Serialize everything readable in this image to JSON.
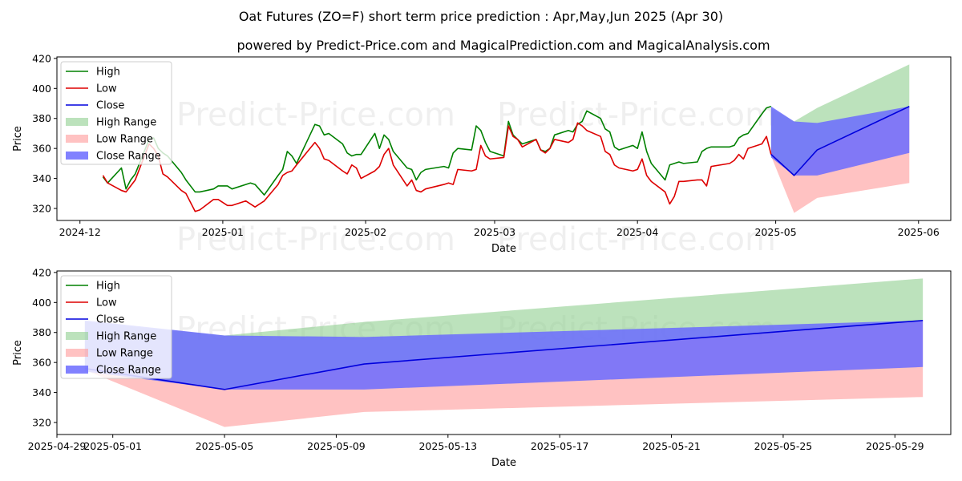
{
  "title": "Oat Futures (ZO=F) short term price prediction : Apr,May,Jun 2025 (Apr 30)",
  "subtitle": "powered by Predict-Price.com and MagicalPrediction.com and MagicalAnalysis.com",
  "watermark": "Predict-Price.com",
  "colors": {
    "high": "#008000",
    "low": "#dd0000",
    "close": "#0000dd",
    "high_range": "#8fcf8f",
    "low_range": "#ff9a9a",
    "close_range": "#6b6bff"
  },
  "chart_data": [
    {
      "type": "line",
      "xlabel": "Date",
      "ylabel": "Price",
      "x_type": "date",
      "xlim": [
        "2024-11-26",
        "2025-06-08"
      ],
      "ylim": [
        312,
        421
      ],
      "xticks": [
        "2024-12-01",
        "2025-01-01",
        "2025-02-01",
        "2025-03-01",
        "2025-04-01",
        "2025-05-01",
        "2025-06-01"
      ],
      "xtick_labels": [
        "2024-12",
        "2025-01",
        "2025-02",
        "2025-03",
        "2025-04",
        "2025-05",
        "2025-06"
      ],
      "yticks": [
        320,
        340,
        360,
        380,
        400,
        420
      ],
      "legend": [
        "High",
        "Low",
        "Close",
        "High Range",
        "Low Range",
        "Close Range"
      ],
      "legend_position": "upper-left",
      "grid": false,
      "series": [
        {
          "name": "High",
          "x": [
            "2024-12-06",
            "2024-12-07",
            "2024-12-10",
            "2024-12-11",
            "2024-12-12",
            "2024-12-13",
            "2024-12-16",
            "2024-12-17",
            "2024-12-18",
            "2024-12-19",
            "2024-12-20",
            "2024-12-23",
            "2024-12-24",
            "2024-12-26",
            "2024-12-27",
            "2024-12-30",
            "2024-12-31",
            "2025-01-02",
            "2025-01-03",
            "2025-01-06",
            "2025-01-07",
            "2025-01-08",
            "2025-01-10",
            "2025-01-13",
            "2025-01-14",
            "2025-01-15",
            "2025-01-16",
            "2025-01-17",
            "2025-01-21",
            "2025-01-22",
            "2025-01-23",
            "2025-01-24",
            "2025-01-27",
            "2025-01-28",
            "2025-01-29",
            "2025-01-30",
            "2025-01-31",
            "2025-02-03",
            "2025-02-04",
            "2025-02-05",
            "2025-02-06",
            "2025-02-07",
            "2025-02-10",
            "2025-02-11",
            "2025-02-12",
            "2025-02-13",
            "2025-02-14",
            "2025-02-18",
            "2025-02-19",
            "2025-02-20",
            "2025-02-21",
            "2025-02-24",
            "2025-02-25",
            "2025-02-26",
            "2025-02-27",
            "2025-02-28",
            "2025-03-03",
            "2025-03-04",
            "2025-03-05",
            "2025-03-06",
            "2025-03-07",
            "2025-03-10",
            "2025-03-11",
            "2025-03-12",
            "2025-03-13",
            "2025-03-14",
            "2025-03-17",
            "2025-03-18",
            "2025-03-19",
            "2025-03-20",
            "2025-03-21",
            "2025-03-24",
            "2025-03-25",
            "2025-03-26",
            "2025-03-27",
            "2025-03-28",
            "2025-03-31",
            "2025-04-01",
            "2025-04-02",
            "2025-04-03",
            "2025-04-04",
            "2025-04-07",
            "2025-04-08",
            "2025-04-09",
            "2025-04-10",
            "2025-04-11",
            "2025-04-14",
            "2025-04-15",
            "2025-04-16",
            "2025-04-17",
            "2025-04-21",
            "2025-04-22",
            "2025-04-23",
            "2025-04-24",
            "2025-04-25",
            "2025-04-28",
            "2025-04-29",
            "2025-04-30"
          ],
          "values": [
            341,
            337,
            347,
            333,
            339,
            343,
            366,
            367,
            360,
            357,
            355,
            344,
            339,
            331,
            331,
            333,
            335,
            335,
            333,
            336,
            337,
            336,
            329,
            342,
            346,
            358,
            355,
            350,
            376,
            375,
            369,
            370,
            363,
            357,
            355,
            356,
            356,
            370,
            360,
            369,
            366,
            358,
            347,
            346,
            339,
            344,
            346,
            348,
            347,
            357,
            360,
            359,
            375,
            372,
            364,
            358,
            355,
            378,
            369,
            366,
            363,
            366,
            359,
            358,
            360,
            369,
            372,
            371,
            376,
            378,
            385,
            380,
            373,
            371,
            361,
            359,
            362,
            360,
            371,
            358,
            350,
            339,
            349,
            350,
            351,
            350,
            351,
            358,
            360,
            361,
            361,
            362,
            367,
            369,
            370,
            383,
            387,
            388
          ]
        },
        {
          "name": "Low",
          "x": [
            "2024-12-06",
            "2024-12-07",
            "2024-12-10",
            "2024-12-11",
            "2024-12-12",
            "2024-12-13",
            "2024-12-16",
            "2024-12-17",
            "2024-12-18",
            "2024-12-19",
            "2024-12-20",
            "2024-12-23",
            "2024-12-24",
            "2024-12-26",
            "2024-12-27",
            "2024-12-30",
            "2024-12-31",
            "2025-01-02",
            "2025-01-03",
            "2025-01-06",
            "2025-01-07",
            "2025-01-08",
            "2025-01-10",
            "2025-01-13",
            "2025-01-14",
            "2025-01-15",
            "2025-01-16",
            "2025-01-17",
            "2025-01-21",
            "2025-01-22",
            "2025-01-23",
            "2025-01-24",
            "2025-01-27",
            "2025-01-28",
            "2025-01-29",
            "2025-01-30",
            "2025-01-31",
            "2025-02-03",
            "2025-02-04",
            "2025-02-05",
            "2025-02-06",
            "2025-02-07",
            "2025-02-10",
            "2025-02-11",
            "2025-02-12",
            "2025-02-13",
            "2025-02-14",
            "2025-02-18",
            "2025-02-19",
            "2025-02-20",
            "2025-02-21",
            "2025-02-24",
            "2025-02-25",
            "2025-02-26",
            "2025-02-27",
            "2025-02-28",
            "2025-03-03",
            "2025-03-04",
            "2025-03-05",
            "2025-03-06",
            "2025-03-07",
            "2025-03-10",
            "2025-03-11",
            "2025-03-12",
            "2025-03-13",
            "2025-03-14",
            "2025-03-17",
            "2025-03-18",
            "2025-03-19",
            "2025-03-20",
            "2025-03-21",
            "2025-03-24",
            "2025-03-25",
            "2025-03-26",
            "2025-03-27",
            "2025-03-28",
            "2025-03-31",
            "2025-04-01",
            "2025-04-02",
            "2025-04-03",
            "2025-04-04",
            "2025-04-07",
            "2025-04-08",
            "2025-04-09",
            "2025-04-10",
            "2025-04-11",
            "2025-04-14",
            "2025-04-15",
            "2025-04-16",
            "2025-04-17",
            "2025-04-21",
            "2025-04-22",
            "2025-04-23",
            "2025-04-24",
            "2025-04-25",
            "2025-04-28",
            "2025-04-29",
            "2025-04-30"
          ],
          "values": [
            342,
            337,
            332,
            331,
            335,
            339,
            363,
            360,
            355,
            343,
            341,
            332,
            330,
            318,
            319,
            326,
            326,
            322,
            322,
            325,
            323,
            321,
            325,
            336,
            342,
            344,
            345,
            349,
            364,
            360,
            353,
            352,
            345,
            343,
            349,
            347,
            340,
            345,
            348,
            356,
            360,
            349,
            335,
            339,
            332,
            331,
            333,
            336,
            337,
            336,
            346,
            345,
            346,
            362,
            355,
            353,
            354,
            375,
            368,
            366,
            361,
            366,
            359,
            357,
            360,
            366,
            364,
            366,
            377,
            375,
            372,
            368,
            358,
            356,
            349,
            347,
            345,
            346,
            353,
            342,
            338,
            331,
            323,
            328,
            338,
            338,
            339,
            339,
            335,
            348,
            350,
            352,
            356,
            353,
            360,
            363,
            368,
            356
          ]
        },
        {
          "name": "Close",
          "x": [
            "2025-04-30",
            "2025-05-05",
            "2025-05-10",
            "2025-05-30"
          ],
          "values": [
            356,
            342,
            359,
            388
          ]
        },
        {
          "name": "High Range",
          "kind": "band",
          "x": [
            "2025-04-30",
            "2025-05-05",
            "2025-05-10",
            "2025-05-30"
          ],
          "upper": [
            387,
            378,
            387,
            416
          ],
          "lower": [
            354,
            342,
            359,
            388
          ]
        },
        {
          "name": "Low Range",
          "kind": "band",
          "x": [
            "2025-04-30",
            "2025-05-05",
            "2025-05-10",
            "2025-05-30"
          ],
          "upper": [
            358,
            342,
            359,
            388
          ],
          "lower": [
            355,
            317,
            327,
            337
          ]
        },
        {
          "name": "Close Range",
          "kind": "band",
          "x": [
            "2025-04-30",
            "2025-05-05",
            "2025-05-10",
            "2025-05-30"
          ],
          "upper": [
            388,
            378,
            377,
            388
          ],
          "lower": [
            354,
            342,
            342,
            357
          ]
        }
      ]
    },
    {
      "type": "line",
      "xlabel": "Date",
      "ylabel": "Price",
      "x_type": "date",
      "xlim": [
        "2025-04-29",
        "2025-05-31"
      ],
      "ylim": [
        312,
        421
      ],
      "xticks": [
        "2025-04-29",
        "2025-05-01",
        "2025-05-05",
        "2025-05-09",
        "2025-05-13",
        "2025-05-17",
        "2025-05-21",
        "2025-05-25",
        "2025-05-29"
      ],
      "xtick_labels": [
        "2025-04-29",
        "2025-05-01",
        "2025-05-05",
        "2025-05-09",
        "2025-05-13",
        "2025-05-17",
        "2025-05-21",
        "2025-05-25",
        "2025-05-29"
      ],
      "yticks": [
        320,
        340,
        360,
        380,
        400,
        420
      ],
      "legend": [
        "High",
        "Low",
        "Close",
        "High Range",
        "Low Range",
        "Close Range"
      ],
      "legend_position": "upper-left",
      "grid": false,
      "series": [
        {
          "name": "Close",
          "x": [
            "2025-04-30",
            "2025-05-05",
            "2025-05-10",
            "2025-05-30"
          ],
          "values": [
            356,
            342,
            359,
            388
          ]
        },
        {
          "name": "High Range",
          "kind": "band",
          "x": [
            "2025-04-30",
            "2025-05-05",
            "2025-05-10",
            "2025-05-30"
          ],
          "upper": [
            387,
            378,
            387,
            416
          ],
          "lower": [
            354,
            342,
            359,
            388
          ]
        },
        {
          "name": "Low Range",
          "kind": "band",
          "x": [
            "2025-04-30",
            "2025-05-05",
            "2025-05-10",
            "2025-05-30"
          ],
          "upper": [
            358,
            342,
            359,
            388
          ],
          "lower": [
            355,
            317,
            327,
            337
          ]
        },
        {
          "name": "Close Range",
          "kind": "band",
          "x": [
            "2025-04-30",
            "2025-05-05",
            "2025-05-10",
            "2025-05-30"
          ],
          "upper": [
            388,
            378,
            377,
            388
          ],
          "lower": [
            354,
            342,
            342,
            357
          ]
        }
      ]
    }
  ]
}
